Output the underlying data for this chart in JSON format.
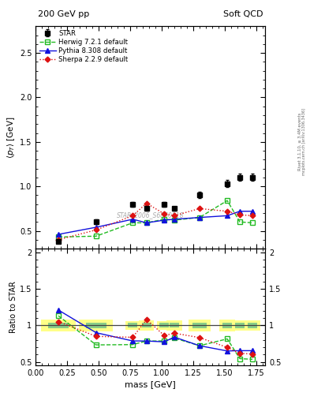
{
  "title_left": "200 GeV pp",
  "title_right": "Soft QCD",
  "ylabel_main": "$\\langle p_T \\rangle$ [GeV]",
  "ylabel_ratio": "Ratio to STAR",
  "xlabel": "mass [GeV]",
  "right_label_top": "Rivet 3.1.10, ≥ 3.4M events",
  "right_label_bot": "mcplots.cern.ch [arXiv:1306.3436]",
  "watermark": "STAR_2006_S6860818",
  "star_x": [
    0.18,
    0.48,
    0.77,
    0.88,
    1.02,
    1.1,
    1.3,
    1.52,
    1.62,
    1.72
  ],
  "star_y": [
    0.38,
    0.6,
    0.8,
    0.75,
    0.8,
    0.75,
    0.9,
    1.03,
    1.1,
    1.1
  ],
  "star_yerr": [
    0.015,
    0.025,
    0.025,
    0.025,
    0.025,
    0.025,
    0.035,
    0.04,
    0.04,
    0.04
  ],
  "herwig_x": [
    0.18,
    0.48,
    0.77,
    0.88,
    1.02,
    1.1,
    1.3,
    1.52,
    1.62,
    1.72
  ],
  "herwig_y": [
    0.43,
    0.44,
    0.59,
    0.59,
    0.63,
    0.62,
    0.65,
    0.84,
    0.6,
    0.59
  ],
  "pythia_x": [
    0.18,
    0.48,
    0.77,
    0.88,
    1.02,
    1.1,
    1.3,
    1.52,
    1.62,
    1.72
  ],
  "pythia_y": [
    0.46,
    0.54,
    0.63,
    0.59,
    0.62,
    0.63,
    0.65,
    0.67,
    0.72,
    0.72
  ],
  "sherpa_x": [
    0.18,
    0.48,
    0.77,
    0.88,
    1.02,
    1.1,
    1.3,
    1.52,
    1.62,
    1.72
  ],
  "sherpa_y": [
    0.4,
    0.51,
    0.67,
    0.81,
    0.69,
    0.67,
    0.75,
    0.72,
    0.68,
    0.67
  ],
  "ylim_main": [
    0.3,
    2.8
  ],
  "ylim_ratio": [
    0.45,
    2.05
  ],
  "xlim": [
    0.0,
    1.82
  ],
  "star_color": "black",
  "herwig_color": "#22bb22",
  "pythia_color": "#1111dd",
  "sherpa_color": "#dd1111",
  "bg_color": "#ffffff",
  "band_yellow": "#ffff88",
  "band_green": "#88cc88",
  "bin_widths": [
    0.18,
    0.18,
    0.08,
    0.08,
    0.08,
    0.08,
    0.12,
    0.08,
    0.08,
    0.08
  ]
}
